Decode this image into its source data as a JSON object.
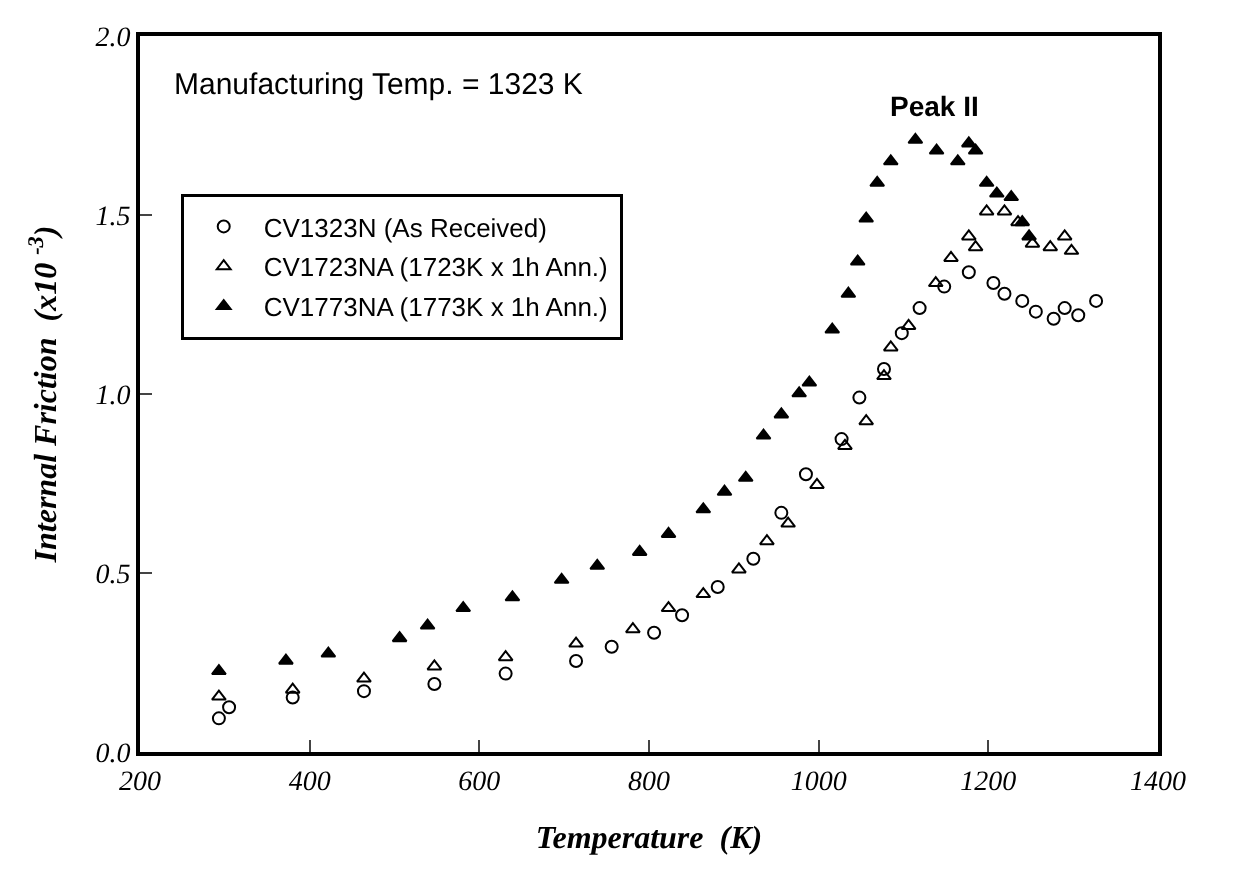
{
  "chart_data": {
    "type": "scatter",
    "xlabel": "Temperature  (K)",
    "ylabel": "Internal Friction  (x10 $^{-3}$)",
    "annotations": [
      "Manufacturing Temp. = 1323 K",
      "Peak II"
    ],
    "xlim": [
      200,
      1400
    ],
    "xticks": [
      200,
      400,
      600,
      800,
      1000,
      1200,
      1400
    ],
    "ylim": [
      0,
      2
    ],
    "yticks": [
      {
        "value": 0,
        "label": "0.0"
      },
      {
        "value": 0.5,
        "label": "0.5"
      },
      {
        "value": 1,
        "label": "1.0"
      },
      {
        "value": 1.5,
        "label": "1.5"
      },
      {
        "value": 2,
        "label": "2.0"
      }
    ],
    "legend": "top left",
    "series": [
      {
        "name": "CV1323N (As Received)",
        "color": "#000000",
        "marker": "circle-open",
        "x": [
          293,
          305,
          380,
          464,
          547,
          631,
          714,
          756,
          806,
          839,
          881,
          923,
          956,
          985,
          1027,
          1048,
          1077,
          1098,
          1119,
          1148,
          1177,
          1206,
          1219,
          1240,
          1256,
          1277,
          1290,
          1306,
          1327
        ],
        "values": [
          0.094,
          0.125,
          0.152,
          0.17,
          0.19,
          0.219,
          0.254,
          0.294,
          0.333,
          0.382,
          0.461,
          0.54,
          0.668,
          0.776,
          0.874,
          0.99,
          1.07,
          1.17,
          1.24,
          1.3,
          1.34,
          1.31,
          1.28,
          1.26,
          1.23,
          1.21,
          1.24,
          1.22,
          1.26
        ]
      },
      {
        "name": "CV1723NA (1723K x 1h Ann.)",
        "color": "#000000",
        "marker": "triangle-open",
        "x": [
          293,
          380,
          464,
          547,
          631,
          714,
          781,
          823,
          864,
          906,
          939,
          964,
          998,
          1031,
          1056,
          1077,
          1085,
          1106,
          1138,
          1156,
          1177,
          1185,
          1198,
          1219,
          1235,
          1252,
          1273,
          1290,
          1298
        ],
        "values": [
          0.155,
          0.174,
          0.205,
          0.239,
          0.265,
          0.303,
          0.343,
          0.402,
          0.441,
          0.51,
          0.589,
          0.638,
          0.746,
          0.855,
          0.924,
          1.05,
          1.13,
          1.19,
          1.31,
          1.38,
          1.44,
          1.41,
          1.51,
          1.51,
          1.48,
          1.42,
          1.41,
          1.44,
          1.4
        ]
      },
      {
        "name": "CV1773NA (1773K x 1h Ann.)",
        "color": "#000000",
        "marker": "triangle",
        "x": [
          293,
          372,
          422,
          506,
          539,
          581,
          639,
          697,
          739,
          789,
          823,
          864,
          889,
          914,
          935,
          956,
          977,
          989,
          1016,
          1035,
          1046,
          1056,
          1069,
          1085,
          1114,
          1139,
          1164,
          1177,
          1185,
          1198,
          1210,
          1227,
          1240,
          1248
        ],
        "values": [
          0.226,
          0.255,
          0.275,
          0.318,
          0.353,
          0.402,
          0.432,
          0.481,
          0.52,
          0.559,
          0.609,
          0.678,
          0.727,
          0.766,
          0.884,
          0.943,
          1.002,
          1.032,
          1.18,
          1.28,
          1.37,
          1.49,
          1.59,
          1.65,
          1.71,
          1.68,
          1.65,
          1.7,
          1.68,
          1.59,
          1.56,
          1.55,
          1.48,
          1.44
        ]
      }
    ]
  }
}
